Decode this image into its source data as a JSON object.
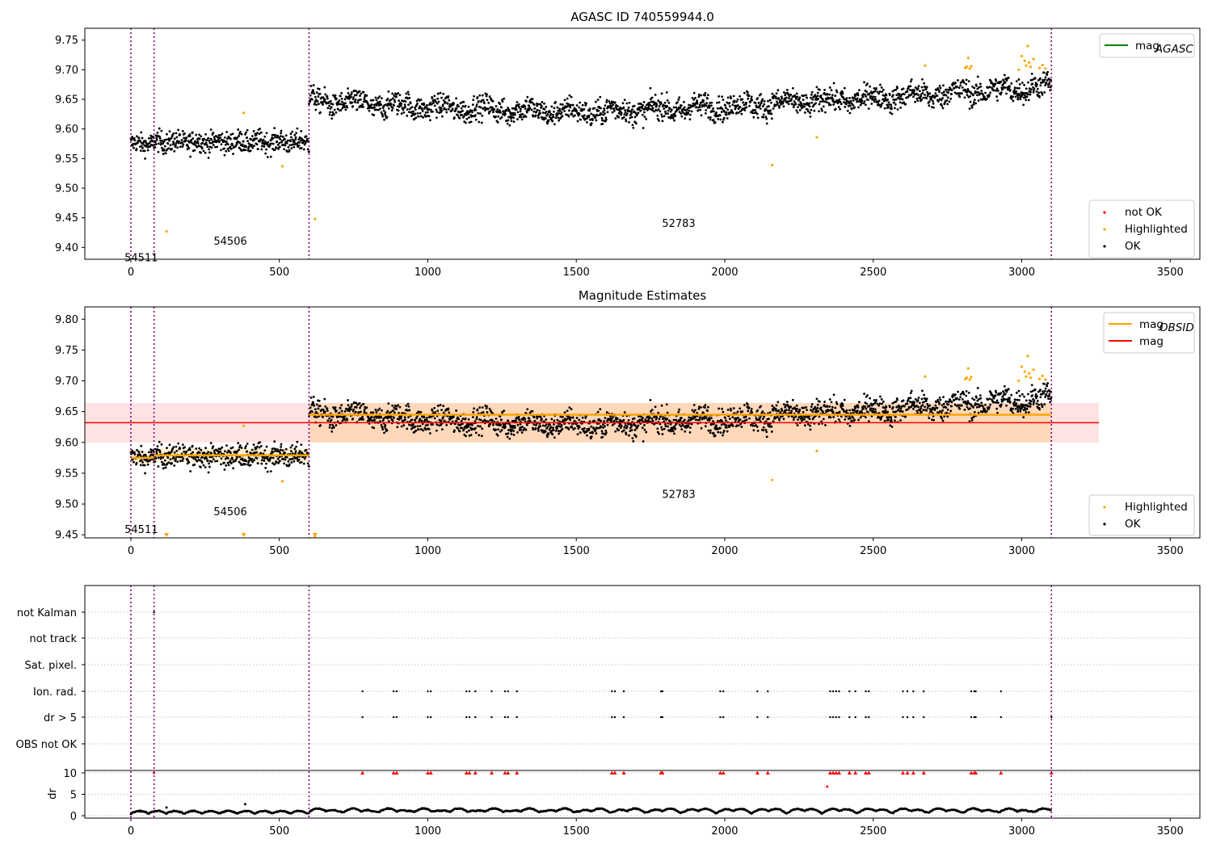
{
  "chart_data": [
    {
      "type": "scatter",
      "title": "AGASC ID 740559944.0",
      "xlim": [
        -155,
        3600
      ],
      "ylim": [
        9.38,
        9.77
      ],
      "xticks": [
        0,
        500,
        1000,
        1500,
        2000,
        2500,
        3000,
        3500
      ],
      "yticks": [
        9.4,
        9.45,
        9.5,
        9.55,
        9.6,
        9.65,
        9.7,
        9.75
      ],
      "segment_lines": [
        0,
        78,
        600,
        3100
      ],
      "segment_labels": [
        {
          "text": "54511",
          "x": 35,
          "y": 9.382
        },
        {
          "text": "54506",
          "x": 335,
          "y": 9.41
        },
        {
          "text": "52783",
          "x": 1845,
          "y": 9.44
        }
      ],
      "legend_top": [
        {
          "name": "mag",
          "sub": "AGASC",
          "color": "#008000"
        }
      ],
      "legend_bottom": [
        {
          "name": "not OK",
          "color": "#ff0000"
        },
        {
          "name": "Highlighted",
          "color": "#ffa500"
        },
        {
          "name": "OK",
          "color": "#000000"
        }
      ],
      "series": [
        {
          "name": "OK",
          "color": "#000000",
          "segments": [
            {
              "x": [
                0,
                78
              ],
              "mean": 9.575,
              "spread": 0.012
            },
            {
              "x": [
                78,
                600
              ],
              "mean": 9.578,
              "spread": 0.013
            },
            {
              "x": [
                600,
                3100
              ],
              "trend": [
                [
                  600,
                  9.647
                ],
                [
                  1000,
                  9.637
                ],
                [
                  1500,
                  9.628
                ],
                [
                  2000,
                  9.638
                ],
                [
                  2500,
                  9.652
                ],
                [
                  2800,
                  9.662
                ],
                [
                  3100,
                  9.672
                ]
              ],
              "spread": 0.014
            }
          ]
        },
        {
          "name": "Highlighted",
          "color": "#ffa500",
          "x": [
            120,
            380,
            510,
            620,
            2160,
            2310,
            2675,
            2810,
            2815,
            2820,
            2825,
            2830,
            2990,
            3000,
            3010,
            3015,
            3020,
            3025,
            3030,
            3040,
            3060,
            3070,
            3080
          ],
          "y": [
            9.427,
            9.627,
            9.537,
            9.448,
            9.539,
            9.586,
            9.707,
            9.703,
            9.705,
            9.72,
            9.702,
            9.706,
            9.7,
            9.723,
            9.715,
            9.707,
            9.74,
            9.712,
            9.705,
            9.718,
            9.703,
            9.708,
            9.702
          ]
        },
        {
          "name": "not OK",
          "color": "#ff0000",
          "x": [],
          "y": []
        }
      ]
    },
    {
      "type": "scatter",
      "title": "Magnitude Estimates",
      "xlim": [
        -155,
        3600
      ],
      "ylim": [
        9.445,
        9.82
      ],
      "xticks": [
        0,
        500,
        1000,
        1500,
        2000,
        2500,
        3000,
        3500
      ],
      "yticks": [
        9.45,
        9.5,
        9.55,
        9.6,
        9.65,
        9.7,
        9.75,
        9.8
      ],
      "segment_lines": [
        0,
        78,
        600,
        3100
      ],
      "segment_labels": [
        {
          "text": "54511",
          "x": 35,
          "y": 9.458
        },
        {
          "text": "54506",
          "x": 335,
          "y": 9.487
        },
        {
          "text": "52783",
          "x": 1845,
          "y": 9.515
        }
      ],
      "legend_top": [
        {
          "name": "mag",
          "sub": "OBSID",
          "color": "#ffa500"
        },
        {
          "name": "mag",
          "sub": "",
          "color": "#ff0000"
        }
      ],
      "legend_bottom": [
        {
          "name": "Highlighted",
          "color": "#ffa500"
        },
        {
          "name": "OK",
          "color": "#000000"
        }
      ],
      "mag": {
        "value": 9.632,
        "band": [
          9.6,
          9.664
        ],
        "x": [
          -155,
          3260
        ],
        "color": "#ff0000"
      },
      "mag_obsid": [
        {
          "x": [
            0,
            78
          ],
          "value": 9.575,
          "band": [
            9.565,
            9.585
          ]
        },
        {
          "x": [
            78,
            600
          ],
          "value": 9.579,
          "band": [
            9.568,
            9.59
          ]
        },
        {
          "x": [
            600,
            3100
          ],
          "value": 9.645,
          "band": [
            9.6,
            9.664
          ]
        }
      ],
      "highlighted_below_range_x": [
        120,
        380,
        620
      ]
    },
    {
      "type": "scatter",
      "title": "",
      "xlim": [
        -155,
        3600
      ],
      "xticks": [
        0,
        500,
        1000,
        1500,
        2000,
        2500,
        3000,
        3500
      ],
      "segment_lines": [
        0,
        78,
        600,
        3100
      ],
      "flag_rows": [
        "not Kalman",
        "not track",
        "Sat. pixel.",
        "Ion. rad.",
        "dr > 5",
        "OBS not OK"
      ],
      "flag_points": {
        "not Kalman": [
          78
        ],
        "Ion. rad.": [
          780,
          885,
          895,
          1000,
          1010,
          1130,
          1140,
          1160,
          1215,
          1260,
          1270,
          1300,
          1620,
          1630,
          1660,
          1785,
          1790,
          1985,
          1995,
          2110,
          2145,
          2355,
          2365,
          2375,
          2385,
          2420,
          2440,
          2475,
          2485,
          2600,
          2615,
          2635,
          2670,
          2830,
          2840,
          2845,
          2930,
          3100
        ],
        "dr > 5": [
          780,
          885,
          895,
          1000,
          1010,
          1130,
          1140,
          1160,
          1215,
          1260,
          1270,
          1300,
          1620,
          1630,
          1660,
          1785,
          1790,
          1985,
          1995,
          2110,
          2145,
          2355,
          2365,
          2375,
          2385,
          2420,
          2440,
          2475,
          2485,
          2600,
          2615,
          2635,
          2670,
          2830,
          2840,
          2845,
          2930,
          3100
        ]
      },
      "dr": {
        "ylabel": "dr",
        "ylim": [
          0,
          10
        ],
        "yticks": [
          0,
          5,
          10
        ],
        "clipped_x": [
          780,
          885,
          895,
          1000,
          1010,
          1130,
          1140,
          1160,
          1215,
          1260,
          1270,
          1300,
          1620,
          1630,
          1660,
          1785,
          1790,
          1985,
          1995,
          2110,
          2145,
          2355,
          2365,
          2375,
          2385,
          2420,
          2440,
          2475,
          2485,
          2600,
          2615,
          2635,
          2670,
          2830,
          2840,
          2845,
          2930,
          3100
        ],
        "outliers": [
          {
            "x": 2345,
            "y": 6.8,
            "color": "#ff0000"
          },
          {
            "x": 385,
            "y": 2.7,
            "color": "#000000"
          },
          {
            "x": 120,
            "y": 1.9,
            "color": "#000000"
          }
        ],
        "typical": [
          0.3,
          2.2
        ]
      }
    }
  ]
}
